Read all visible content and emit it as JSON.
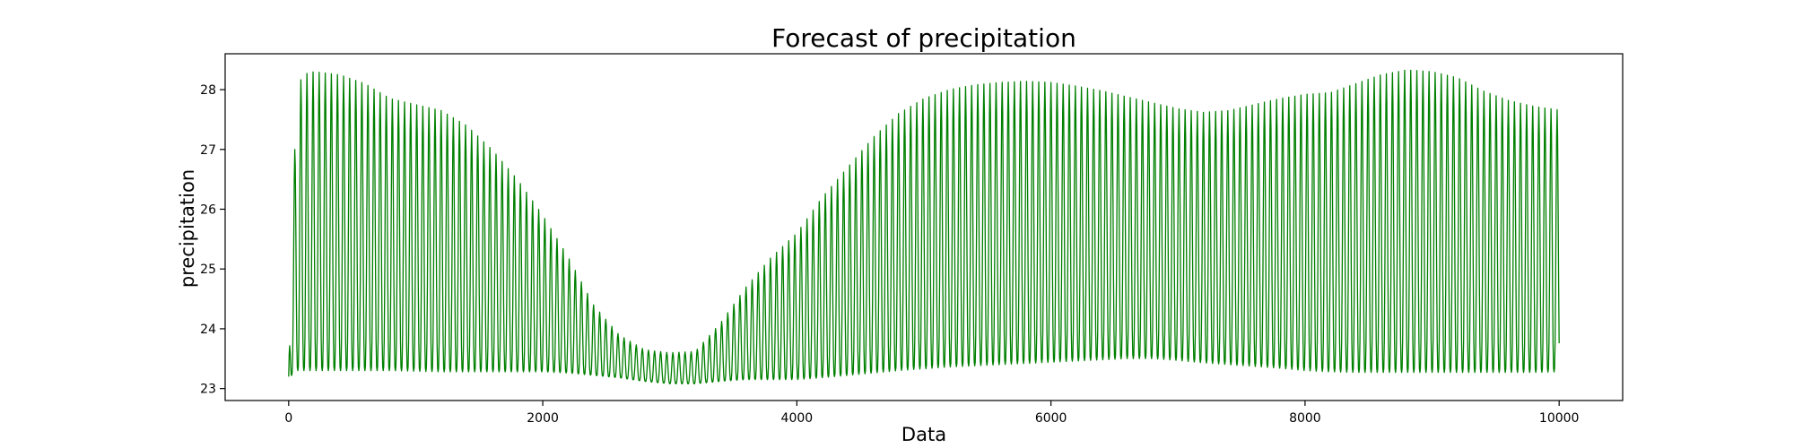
{
  "chart_data": {
    "type": "line",
    "title": "Forecast of precipitation",
    "xlabel": "Data",
    "ylabel": "precipitation",
    "xlim": [
      -500,
      10500
    ],
    "ylim": [
      22.8,
      28.6
    ],
    "xticks": [
      0,
      2000,
      4000,
      6000,
      8000,
      10000
    ],
    "yticks": [
      23,
      24,
      25,
      26,
      27,
      28
    ],
    "grid": false,
    "legend": "none",
    "color": "#008000",
    "series": [
      {
        "style": "oscillating",
        "x_range": [
          0,
          10000
        ],
        "oscillation_period": 48,
        "upper_envelope": {
          "x": [
            0,
            30,
            60,
            100,
            200,
            400,
            600,
            800,
            1000,
            1200,
            1400,
            1600,
            1800,
            2000,
            2200,
            2400,
            2600,
            2800,
            3000,
            3200,
            3400,
            3600,
            3800,
            4000,
            4200,
            4400,
            4600,
            4800,
            5000,
            5200,
            5400,
            5600,
            5800,
            6000,
            6200,
            6400,
            6600,
            6800,
            7000,
            7200,
            7400,
            7600,
            7800,
            8000,
            8200,
            8400,
            8600,
            8800,
            9000,
            9200,
            9400,
            9600,
            9800,
            10000
          ],
          "y": [
            23.2,
            26.4,
            27.4,
            28.25,
            28.3,
            28.25,
            28.1,
            27.85,
            27.75,
            27.65,
            27.4,
            27.0,
            26.5,
            25.9,
            25.2,
            24.4,
            23.9,
            23.65,
            23.6,
            23.62,
            24.1,
            24.7,
            25.2,
            25.6,
            26.2,
            26.7,
            27.2,
            27.6,
            27.85,
            28.0,
            28.08,
            28.12,
            28.14,
            28.12,
            28.06,
            27.98,
            27.88,
            27.78,
            27.68,
            27.62,
            27.65,
            27.75,
            27.85,
            27.92,
            27.95,
            28.1,
            28.25,
            28.33,
            28.3,
            28.2,
            27.98,
            27.82,
            27.72,
            27.66
          ]
        },
        "lower_envelope": {
          "x": [
            0,
            30,
            60,
            100,
            200,
            400,
            600,
            800,
            1000,
            1200,
            1400,
            1600,
            1800,
            2000,
            2200,
            2400,
            2600,
            2800,
            3000,
            3200,
            3400,
            3600,
            3800,
            4000,
            4200,
            4400,
            4600,
            4800,
            5000,
            5200,
            5400,
            5600,
            5800,
            6000,
            6200,
            6400,
            6600,
            6800,
            7000,
            7200,
            7400,
            7600,
            7800,
            8000,
            8200,
            8400,
            8600,
            8800,
            9000,
            9200,
            9400,
            9600,
            9800,
            10000
          ],
          "y": [
            23.1,
            23.25,
            23.3,
            23.3,
            23.3,
            23.3,
            23.3,
            23.3,
            23.29,
            23.28,
            23.28,
            23.28,
            23.28,
            23.28,
            23.26,
            23.22,
            23.18,
            23.12,
            23.08,
            23.08,
            23.12,
            23.15,
            23.15,
            23.15,
            23.18,
            23.22,
            23.26,
            23.3,
            23.33,
            23.36,
            23.38,
            23.4,
            23.42,
            23.44,
            23.46,
            23.48,
            23.5,
            23.5,
            23.47,
            23.43,
            23.4,
            23.37,
            23.34,
            23.3,
            23.28,
            23.27,
            23.27,
            23.27,
            23.27,
            23.27,
            23.27,
            23.27,
            23.27,
            23.28
          ]
        }
      }
    ]
  }
}
